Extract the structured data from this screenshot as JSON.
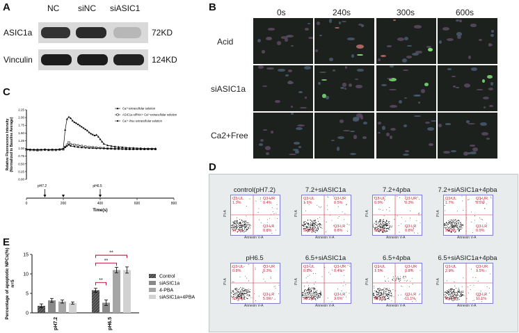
{
  "panels": {
    "A": {
      "letter": "A",
      "lanes": [
        "NC",
        "siNC",
        "siASIC1"
      ],
      "rows": [
        {
          "protein": "ASIC1a",
          "size": "72KD"
        },
        {
          "protein": "Vinculin",
          "size": "124KD"
        }
      ]
    },
    "B": {
      "letter": "B",
      "times": [
        "0s",
        "240s",
        "300s",
        "600s"
      ],
      "conditions": [
        "Acid",
        "siASIC1a",
        "Ca2+Free"
      ]
    },
    "C": {
      "letter": "C",
      "stim_labels": {
        "ph72": "pH7.2",
        "ph65": "pH6.5"
      }
    },
    "D": {
      "letter": "D",
      "plots": [
        {
          "title": "control(pH7.2)",
          "ul": "Q3-UL",
          "ul_v": "1.3%",
          "ur": "Q3-UR",
          "ur_v": "0.4%",
          "ll_v": "97.5%",
          "lr": "Q3-LR",
          "lr_v": "0.8%"
        },
        {
          "title": "7.2+siASIC1a",
          "ul": "Q3-UL",
          "ul_v": "1.1%",
          "ur": "Q3-UR",
          "ur_v": "0.5%",
          "ll_v": "97.6%",
          "lr": "Q3-LR",
          "lr_v": "0.8%"
        },
        {
          "title": "7.2+4pba",
          "ul": "Q3-UL",
          "ul_v": "0.9%",
          "ur": "Q3-UR",
          "ur_v": "0.3%",
          "ll_v": "98.0%",
          "lr": "Q3-LR",
          "lr_v": "0.8%"
        },
        {
          "title": "7.2+siASIC1a+4pba",
          "ul": "Q3-UL",
          "ul_v": "1.7%",
          "ur": "Q3-UR",
          "ur_v": "0.5%",
          "ll_v": "96.9%",
          "lr": "Q3-LR",
          "lr_v": "0.9%"
        },
        {
          "title": "pH6.5",
          "ul": "Q3-UL",
          "ul_v": "0.8%",
          "ur": "Q3-UR",
          "ur_v": "0.3%",
          "ll_v": "93.0%",
          "lr": "Q3-LR",
          "lr_v": "5.9%"
        },
        {
          "title": "6.5+siASIC1a",
          "ul": "Q3-UL",
          "ul_v": "0.8%",
          "ur": "Q3-UR",
          "ur_v": "0.4%",
          "ll_v": "96.2%",
          "lr": "Q3-LR",
          "lr_v": "2.6%"
        },
        {
          "title": "6.5+4pba",
          "ul": "Q3-UL",
          "ul_v": "1.5%",
          "ur": "Q3-UR",
          "ur_v": "0.8%",
          "ll_v": "86.6%",
          "lr": "Q3-LR",
          "lr_v": "11.1%"
        },
        {
          "title": "6.5+siASIC1a+4pba",
          "ul": "Q3-UL",
          "ul_v": "2.0%",
          "ur": "Q3-UR",
          "ur_v": "1.5%",
          "ll_v": "85.4%",
          "lr": "Q3-LR",
          "lr_v": "11.1%"
        }
      ],
      "xaxis": "Annexin V-A",
      "yaxis": "PI-A"
    },
    "E": {
      "letter": "E"
    }
  },
  "chart_data": [
    {
      "type": "line",
      "ylabel": "Relative Fluorescence Intensity (Normalized to Baseline Average)",
      "xlabel": "Time(s)",
      "xlim": [
        0,
        800
      ],
      "ylim": [
        0,
        2.25
      ],
      "yticks": [
        "0.00",
        "0.25",
        "0.50",
        "0.75",
        "1.00",
        "1.25",
        "1.50",
        "1.75",
        "2.00",
        "2.25"
      ],
      "xticks": [
        "0",
        "200",
        "400",
        "600",
        "800"
      ],
      "legend_position": "top-right",
      "series": [
        {
          "name": "Ca²⁺extracellular solution",
          "marker": "triangle",
          "x": [
            0,
            20,
            40,
            60,
            80,
            100,
            120,
            140,
            160,
            180,
            200,
            210,
            220,
            230,
            240,
            250,
            260,
            270,
            280,
            290,
            300,
            310,
            320,
            330,
            340,
            350,
            360,
            370,
            380,
            390,
            400,
            410,
            420,
            440,
            460,
            480,
            500,
            520,
            540,
            560,
            580,
            600,
            620,
            640,
            660,
            680,
            700
          ],
          "y": [
            0.98,
            0.97,
            0.96,
            0.97,
            0.96,
            0.97,
            0.96,
            0.97,
            0.96,
            0.98,
            1.0,
            1.6,
            1.95,
            2.02,
            1.98,
            1.9,
            1.85,
            1.82,
            1.78,
            1.74,
            1.7,
            1.66,
            1.62,
            1.58,
            1.52,
            1.48,
            1.45,
            1.42,
            1.44,
            1.38,
            1.3,
            1.22,
            1.15,
            1.1,
            1.08,
            1.06,
            1.05,
            1.04,
            1.03,
            1.02,
            1.02,
            1.01,
            1.01,
            1.0,
            1.0,
            1.0,
            1.0
          ]
        },
        {
          "name": "ASIC1a siRNA+ Ca²⁺extracellular solution",
          "marker": "square",
          "x": [
            0,
            20,
            40,
            60,
            80,
            100,
            120,
            140,
            160,
            180,
            200,
            210,
            220,
            230,
            240,
            260,
            280,
            300,
            320,
            340,
            360,
            380,
            400,
            420,
            440,
            460,
            480,
            500,
            520,
            540,
            560,
            580,
            600,
            620,
            640,
            660,
            680,
            700
          ],
          "y": [
            0.96,
            0.95,
            0.95,
            0.94,
            0.95,
            0.96,
            0.95,
            0.95,
            0.95,
            0.96,
            0.97,
            1.05,
            1.12,
            1.2,
            1.14,
            1.12,
            1.1,
            1.08,
            1.06,
            1.05,
            1.04,
            1.03,
            1.02,
            1.01,
            1.0,
            1.0,
            0.99,
            0.99,
            0.99,
            0.98,
            0.98,
            0.98,
            0.98,
            0.98,
            0.98,
            0.98,
            0.98,
            0.98
          ]
        },
        {
          "name": "Ca²⁺-free extracellular solution",
          "marker": "circle",
          "x": [
            0,
            20,
            40,
            60,
            80,
            100,
            120,
            140,
            160,
            180,
            200,
            210,
            220,
            230,
            240,
            260,
            280,
            300,
            320,
            340,
            360,
            380,
            400,
            420,
            440,
            460,
            480,
            500,
            520,
            540,
            560,
            580,
            600,
            620,
            640,
            660,
            680,
            700
          ],
          "y": [
            0.97,
            0.96,
            0.96,
            0.95,
            0.96,
            0.96,
            0.95,
            0.96,
            0.96,
            0.97,
            0.98,
            1.04,
            1.08,
            1.12,
            1.08,
            1.06,
            1.04,
            1.03,
            1.02,
            1.01,
            1.01,
            1.0,
            1.0,
            1.0,
            0.99,
            0.99,
            0.99,
            0.99,
            0.98,
            0.98,
            0.98,
            0.98,
            0.98,
            0.98,
            0.98,
            0.98,
            0.98,
            0.98
          ]
        }
      ],
      "annotations": [
        {
          "label": "pH7.2",
          "x": 100
        },
        {
          "label": "pH6.5",
          "x": 400
        }
      ]
    },
    {
      "type": "bar",
      "ylabel": "Percentage of apoptotic NPCs(%) n=5",
      "categories": [
        "pH7.2",
        "pH6.5"
      ],
      "ylim": [
        0,
        15
      ],
      "yticks": [
        "0",
        "5",
        "10",
        "15"
      ],
      "legend_position": "right",
      "series": [
        {
          "name": "Control",
          "values": [
            1.8,
            5.8
          ],
          "errors": [
            0.5,
            0.5
          ],
          "color": "#555555",
          "pattern": "hatch"
        },
        {
          "name": "siASIC1a",
          "values": [
            3.2,
            2.6
          ],
          "errors": [
            0.5,
            0.7
          ],
          "color": "#8a8a8a"
        },
        {
          "name": "4-PBA",
          "values": [
            2.9,
            11.0
          ],
          "errors": [
            0.4,
            0.7
          ],
          "color": "#a6a6a6"
        },
        {
          "name": "siASIC1a+4PBA",
          "values": [
            2.5,
            11.0
          ],
          "errors": [
            0.3,
            0.8
          ],
          "color": "#d2d2d2"
        }
      ],
      "significance": [
        "**",
        "**",
        "**"
      ]
    }
  ]
}
